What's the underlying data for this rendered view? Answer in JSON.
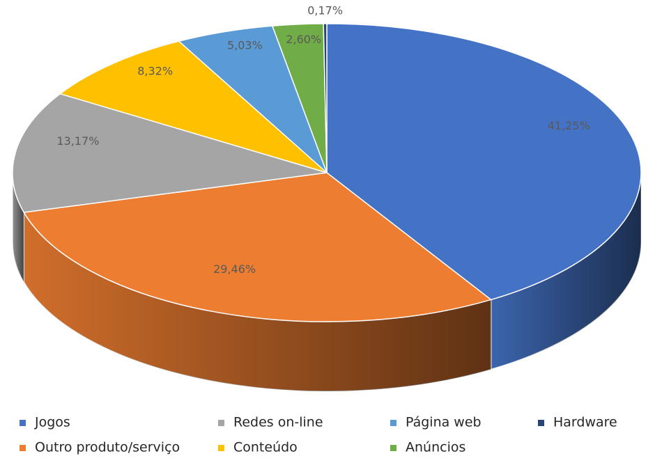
{
  "chart_data": {
    "type": "pie3d",
    "categories": [
      "Jogos",
      "Outro produto/serviço",
      "Redes on-line",
      "Conteúdo",
      "Página web",
      "Anúncios",
      "Hardware"
    ],
    "values": [
      41.25,
      29.46,
      13.17,
      8.32,
      5.03,
      2.6,
      0.17
    ],
    "value_labels": [
      "41,25%",
      "29,46%",
      "13,17%",
      "8,32%",
      "5,03%",
      "2,60%",
      "0,17%"
    ],
    "colors": [
      "#4472c4",
      "#ed7d31",
      "#a5a5a5",
      "#ffc000",
      "#5b9bd5",
      "#70ad47",
      "#264478"
    ],
    "legend": "bottom"
  }
}
